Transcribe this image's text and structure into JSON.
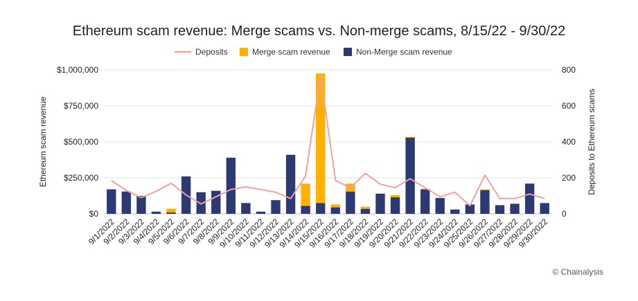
{
  "page": {
    "title": "Ethereum scam revenue: Merge scams vs. Non-merge scams, 8/15/22 - 9/30/22",
    "source": "© Chainalysis"
  },
  "colors": {
    "merge": "#FFB000",
    "nonmerge": "#2B3A73",
    "deposits": "#F2A1A0"
  },
  "chart_data": {
    "type": "bar",
    "title": "Ethereum scam revenue: Merge scams vs. Non-merge scams, 8/15/22 - 9/30/22",
    "xlabel": "",
    "ylabel": "Ethereum scam revenue",
    "y2label": "Deposits to Ethereum scams",
    "ylim": [
      0,
      1000000
    ],
    "y2lim": [
      0,
      800
    ],
    "yticks": [
      "$0",
      "$250,000",
      "$500,000",
      "$750,000",
      "$1,000,000"
    ],
    "y2ticks": [
      "0",
      "200",
      "400",
      "600",
      "800"
    ],
    "legend_position": "top-center",
    "grid": true,
    "categories": [
      "9/1/2022",
      "9/2/2022",
      "9/3/2022",
      "9/4/2022",
      "9/5/2022",
      "9/6/2022",
      "9/7/2022",
      "9/8/2022",
      "9/9/2022",
      "9/10/2022",
      "9/11/2022",
      "9/12/2022",
      "9/13/2022",
      "9/14/2022",
      "9/15/2022",
      "9/16/2022",
      "9/17/2022",
      "9/18/2022",
      "9/19/2022",
      "9/20/2022",
      "9/21/2022",
      "9/22/2022",
      "9/23/2022",
      "9/24/2022",
      "9/25/2022",
      "9/26/2022",
      "9/27/2022",
      "9/28/2022",
      "9/29/2022",
      "9/30/2022"
    ],
    "series": [
      {
        "name": "Deposits",
        "type": "line",
        "axis": "right",
        "values": [
          185,
          130,
          90,
          125,
          170,
          105,
          55,
          95,
          135,
          150,
          135,
          120,
          85,
          210,
          770,
          185,
          145,
          225,
          165,
          145,
          195,
          145,
          95,
          120,
          45,
          215,
          85,
          85,
          110,
          85
        ]
      },
      {
        "name": "Merge scam revenue",
        "type": "bar",
        "stack": "revenue",
        "values": [
          0,
          0,
          0,
          0,
          25000,
          0,
          0,
          0,
          0,
          0,
          0,
          0,
          0,
          155000,
          900000,
          20000,
          55000,
          15000,
          0,
          15000,
          5000,
          5000,
          0,
          0,
          0,
          5000,
          0,
          0,
          0,
          0
        ]
      },
      {
        "name": "Non-Merge scam revenue",
        "type": "bar",
        "stack": "revenue",
        "values": [
          170000,
          155000,
          125000,
          15000,
          10000,
          260000,
          150000,
          160000,
          390000,
          75000,
          15000,
          95000,
          410000,
          55000,
          75000,
          45000,
          155000,
          35000,
          140000,
          115000,
          530000,
          170000,
          110000,
          30000,
          65000,
          165000,
          60000,
          70000,
          210000,
          75000
        ]
      }
    ]
  }
}
